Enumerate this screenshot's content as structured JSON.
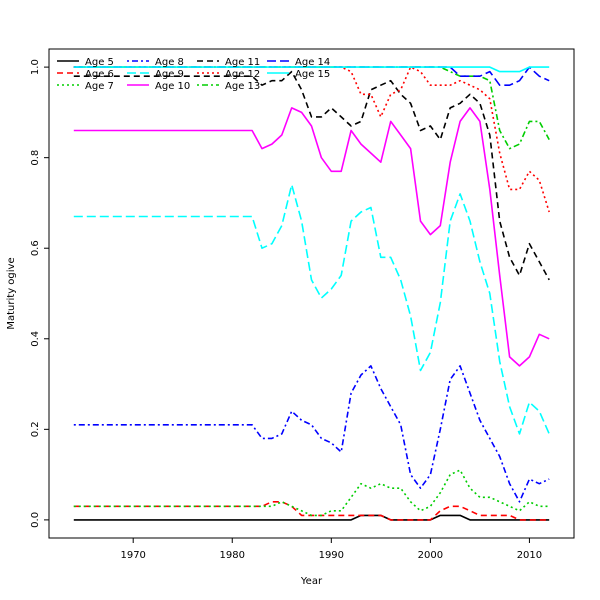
{
  "chart_data": {
    "type": "line",
    "title": "",
    "xlabel": "Year",
    "ylabel": "Maturity ogive",
    "xlim": [
      1961.5,
      2014.5
    ],
    "ylim": [
      -0.04,
      1.04
    ],
    "xticks": [
      1970,
      1980,
      1990,
      2000,
      2010
    ],
    "yticks": [
      0.0,
      0.2,
      0.4,
      0.6,
      0.8,
      1.0
    ],
    "ytick_labels": [
      "0.0",
      "0.2",
      "0.4",
      "0.6",
      "0.8",
      "1.0"
    ],
    "grid": false,
    "legend_position": "top-left",
    "years_start": 1964,
    "years_end": 2012,
    "series": [
      {
        "name": "Age 5",
        "color": "#000000",
        "dash": "solid",
        "keyframes": [
          [
            1964,
            0
          ],
          [
            1992,
            0
          ],
          [
            1993,
            0.01
          ],
          [
            1995,
            0.01
          ],
          [
            1996,
            0
          ],
          [
            2000,
            0
          ],
          [
            2001,
            0.01
          ],
          [
            2003,
            0.01
          ],
          [
            2004,
            0
          ],
          [
            2012,
            0
          ]
        ]
      },
      {
        "name": "Age 6",
        "color": "#ff0000",
        "dash": "dashed",
        "keyframes": [
          [
            1964,
            0.03
          ],
          [
            1982,
            0.03
          ],
          [
            1983,
            0.03
          ],
          [
            1984,
            0.04
          ],
          [
            1985,
            0.04
          ],
          [
            1986,
            0.03
          ],
          [
            1987,
            0.01
          ],
          [
            1992,
            0.01
          ],
          [
            1993,
            0.01
          ],
          [
            1995,
            0.01
          ],
          [
            1996,
            0
          ],
          [
            2000,
            0
          ],
          [
            2001,
            0.02
          ],
          [
            2002,
            0.03
          ],
          [
            2003,
            0.03
          ],
          [
            2004,
            0.02
          ],
          [
            2005,
            0.01
          ],
          [
            2008,
            0.01
          ],
          [
            2009,
            0
          ],
          [
            2012,
            0
          ]
        ]
      },
      {
        "name": "Age 7",
        "color": "#00cd00",
        "dash": "dotted",
        "keyframes": [
          [
            1964,
            0.03
          ],
          [
            1983,
            0.03
          ],
          [
            1984,
            0.03
          ],
          [
            1985,
            0.04
          ],
          [
            1986,
            0.03
          ],
          [
            1987,
            0.02
          ],
          [
            1988,
            0.01
          ],
          [
            1989,
            0.01
          ],
          [
            1990,
            0.02
          ],
          [
            1991,
            0.02
          ],
          [
            1992,
            0.05
          ],
          [
            1993,
            0.08
          ],
          [
            1994,
            0.07
          ],
          [
            1995,
            0.08
          ],
          [
            1996,
            0.07
          ],
          [
            1997,
            0.07
          ],
          [
            1998,
            0.04
          ],
          [
            1999,
            0.02
          ],
          [
            2000,
            0.03
          ],
          [
            2001,
            0.06
          ],
          [
            2002,
            0.1
          ],
          [
            2003,
            0.11
          ],
          [
            2004,
            0.07
          ],
          [
            2005,
            0.05
          ],
          [
            2006,
            0.05
          ],
          [
            2007,
            0.04
          ],
          [
            2008,
            0.03
          ],
          [
            2009,
            0.02
          ],
          [
            2010,
            0.04
          ],
          [
            2011,
            0.03
          ],
          [
            2012,
            0.03
          ]
        ]
      },
      {
        "name": "Age 8",
        "color": "#0000ff",
        "dash": "dotdash",
        "keyframes": [
          [
            1964,
            0.21
          ],
          [
            1982,
            0.21
          ],
          [
            1983,
            0.18
          ],
          [
            1984,
            0.18
          ],
          [
            1985,
            0.19
          ],
          [
            1986,
            0.24
          ],
          [
            1987,
            0.22
          ],
          [
            1988,
            0.21
          ],
          [
            1989,
            0.18
          ],
          [
            1990,
            0.17
          ],
          [
            1991,
            0.15
          ],
          [
            1992,
            0.28
          ],
          [
            1993,
            0.32
          ],
          [
            1994,
            0.34
          ],
          [
            1995,
            0.29
          ],
          [
            1996,
            0.25
          ],
          [
            1997,
            0.21
          ],
          [
            1998,
            0.1
          ],
          [
            1999,
            0.07
          ],
          [
            2000,
            0.1
          ],
          [
            2001,
            0.2
          ],
          [
            2002,
            0.31
          ],
          [
            2003,
            0.34
          ],
          [
            2004,
            0.28
          ],
          [
            2005,
            0.22
          ],
          [
            2006,
            0.18
          ],
          [
            2007,
            0.14
          ],
          [
            2008,
            0.08
          ],
          [
            2009,
            0.04
          ],
          [
            2010,
            0.09
          ],
          [
            2011,
            0.08
          ],
          [
            2012,
            0.09
          ]
        ]
      },
      {
        "name": "Age 9",
        "color": "#00ffff",
        "dash": "longdash",
        "keyframes": [
          [
            1964,
            0.67
          ],
          [
            1982,
            0.67
          ],
          [
            1983,
            0.6
          ],
          [
            1984,
            0.61
          ],
          [
            1985,
            0.65
          ],
          [
            1986,
            0.74
          ],
          [
            1987,
            0.66
          ],
          [
            1988,
            0.53
          ],
          [
            1989,
            0.49
          ],
          [
            1990,
            0.51
          ],
          [
            1991,
            0.54
          ],
          [
            1992,
            0.66
          ],
          [
            1993,
            0.68
          ],
          [
            1994,
            0.69
          ],
          [
            1995,
            0.58
          ],
          [
            1996,
            0.58
          ],
          [
            1997,
            0.53
          ],
          [
            1998,
            0.45
          ],
          [
            1999,
            0.33
          ],
          [
            2000,
            0.37
          ],
          [
            2001,
            0.48
          ],
          [
            2002,
            0.66
          ],
          [
            2003,
            0.72
          ],
          [
            2004,
            0.66
          ],
          [
            2005,
            0.57
          ],
          [
            2006,
            0.5
          ],
          [
            2007,
            0.35
          ],
          [
            2008,
            0.25
          ],
          [
            2009,
            0.19
          ],
          [
            2010,
            0.26
          ],
          [
            2011,
            0.24
          ],
          [
            2012,
            0.19
          ]
        ]
      },
      {
        "name": "Age 10",
        "color": "#ff00ff",
        "dash": "solid",
        "keyframes": [
          [
            1964,
            0.86
          ],
          [
            1982,
            0.86
          ],
          [
            1983,
            0.82
          ],
          [
            1984,
            0.83
          ],
          [
            1985,
            0.85
          ],
          [
            1986,
            0.91
          ],
          [
            1987,
            0.9
          ],
          [
            1988,
            0.87
          ],
          [
            1989,
            0.8
          ],
          [
            1990,
            0.77
          ],
          [
            1991,
            0.77
          ],
          [
            1992,
            0.86
          ],
          [
            1993,
            0.83
          ],
          [
            1994,
            0.81
          ],
          [
            1995,
            0.79
          ],
          [
            1996,
            0.88
          ],
          [
            1997,
            0.85
          ],
          [
            1998,
            0.82
          ],
          [
            1999,
            0.66
          ],
          [
            2000,
            0.63
          ],
          [
            2001,
            0.65
          ],
          [
            2002,
            0.79
          ],
          [
            2003,
            0.88
          ],
          [
            2004,
            0.91
          ],
          [
            2005,
            0.88
          ],
          [
            2006,
            0.73
          ],
          [
            2007,
            0.54
          ],
          [
            2008,
            0.36
          ],
          [
            2009,
            0.34
          ],
          [
            2010,
            0.36
          ],
          [
            2011,
            0.41
          ],
          [
            2012,
            0.4
          ]
        ]
      },
      {
        "name": "Age 11",
        "color": "#000000",
        "dash": "dashed",
        "keyframes": [
          [
            1964,
            0.98
          ],
          [
            1982,
            0.98
          ],
          [
            1983,
            0.96
          ],
          [
            1984,
            0.97
          ],
          [
            1985,
            0.97
          ],
          [
            1986,
            0.99
          ],
          [
            1987,
            0.95
          ],
          [
            1988,
            0.89
          ],
          [
            1989,
            0.89
          ],
          [
            1990,
            0.91
          ],
          [
            1991,
            0.89
          ],
          [
            1992,
            0.87
          ],
          [
            1993,
            0.88
          ],
          [
            1994,
            0.95
          ],
          [
            1995,
            0.96
          ],
          [
            1996,
            0.97
          ],
          [
            1997,
            0.94
          ],
          [
            1998,
            0.92
          ],
          [
            1999,
            0.86
          ],
          [
            2000,
            0.87
          ],
          [
            2001,
            0.84
          ],
          [
            2002,
            0.91
          ],
          [
            2003,
            0.92
          ],
          [
            2004,
            0.94
          ],
          [
            2005,
            0.92
          ],
          [
            2006,
            0.85
          ],
          [
            2007,
            0.66
          ],
          [
            2008,
            0.58
          ],
          [
            2009,
            0.54
          ],
          [
            2010,
            0.61
          ],
          [
            2011,
            0.57
          ],
          [
            2012,
            0.53
          ]
        ]
      },
      {
        "name": "Age 12",
        "color": "#ff0000",
        "dash": "dotted",
        "keyframes": [
          [
            1964,
            1.0
          ],
          [
            1991,
            1.0
          ],
          [
            1992,
            0.99
          ],
          [
            1993,
            0.94
          ],
          [
            1994,
            0.94
          ],
          [
            1995,
            0.89
          ],
          [
            1996,
            0.94
          ],
          [
            1997,
            0.95
          ],
          [
            1998,
            1.0
          ],
          [
            1999,
            0.99
          ],
          [
            2000,
            0.96
          ],
          [
            2001,
            0.96
          ],
          [
            2002,
            0.96
          ],
          [
            2003,
            0.97
          ],
          [
            2004,
            0.96
          ],
          [
            2005,
            0.95
          ],
          [
            2006,
            0.93
          ],
          [
            2007,
            0.81
          ],
          [
            2008,
            0.73
          ],
          [
            2009,
            0.73
          ],
          [
            2010,
            0.77
          ],
          [
            2011,
            0.75
          ],
          [
            2012,
            0.68
          ]
        ]
      },
      {
        "name": "Age 13",
        "color": "#00cd00",
        "dash": "dotdash",
        "keyframes": [
          [
            1964,
            1.0
          ],
          [
            2001,
            1.0
          ],
          [
            2002,
            0.99
          ],
          [
            2003,
            0.98
          ],
          [
            2004,
            0.98
          ],
          [
            2005,
            0.98
          ],
          [
            2006,
            0.97
          ],
          [
            2007,
            0.86
          ],
          [
            2008,
            0.82
          ],
          [
            2009,
            0.83
          ],
          [
            2010,
            0.88
          ],
          [
            2011,
            0.88
          ],
          [
            2012,
            0.84
          ]
        ]
      },
      {
        "name": "Age 14",
        "color": "#0000ff",
        "dash": "longdash",
        "keyframes": [
          [
            1964,
            1.0
          ],
          [
            2002,
            1.0
          ],
          [
            2003,
            0.98
          ],
          [
            2004,
            0.98
          ],
          [
            2005,
            0.98
          ],
          [
            2006,
            0.99
          ],
          [
            2007,
            0.96
          ],
          [
            2008,
            0.96
          ],
          [
            2009,
            0.97
          ],
          [
            2010,
            1.0
          ],
          [
            2011,
            0.98
          ],
          [
            2012,
            0.97
          ]
        ]
      },
      {
        "name": "Age 15",
        "color": "#00ffff",
        "dash": "solid",
        "keyframes": [
          [
            1964,
            1.0
          ],
          [
            2006,
            1.0
          ],
          [
            2007,
            0.99
          ],
          [
            2008,
            0.99
          ],
          [
            2009,
            0.99
          ],
          [
            2010,
            1.0
          ],
          [
            2011,
            1.0
          ],
          [
            2012,
            1.0
          ]
        ]
      }
    ]
  }
}
